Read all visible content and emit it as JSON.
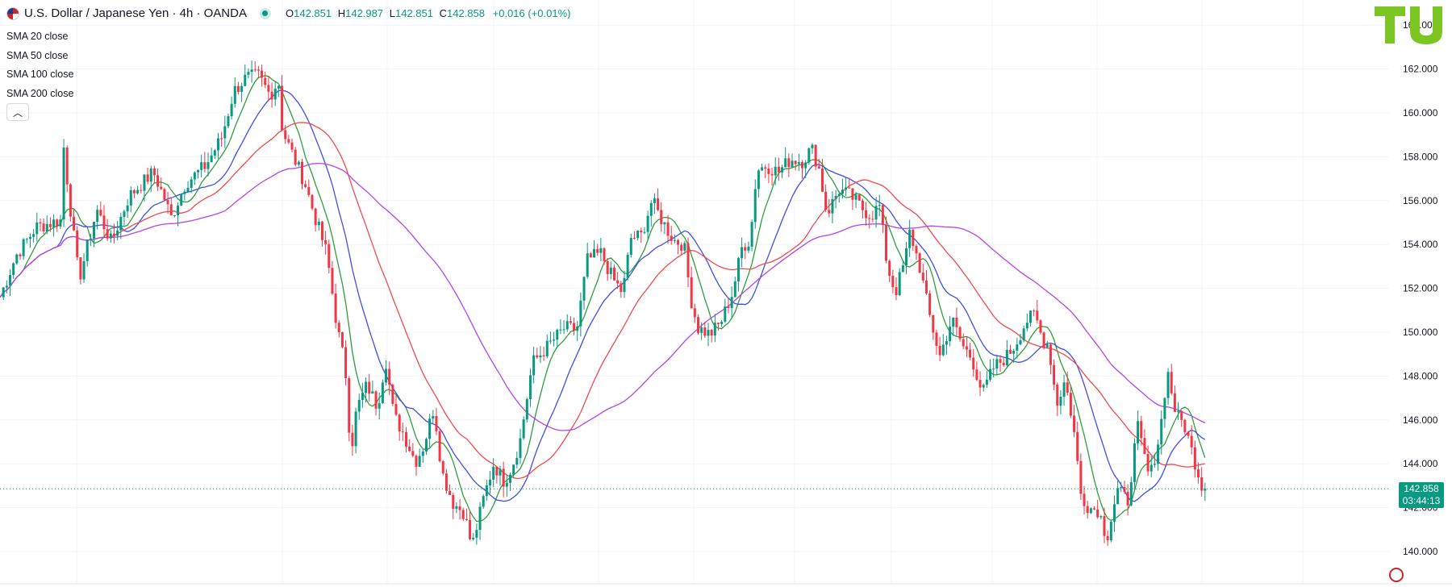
{
  "header": {
    "symbol_title": "U.S. Dollar / Japanese Yen · 4h · OANDA",
    "ohlc": [
      {
        "key": "O",
        "value": "142.851"
      },
      {
        "key": "H",
        "value": "142.987"
      },
      {
        "key": "L",
        "value": "142.851"
      },
      {
        "key": "C",
        "value": "142.858"
      },
      {
        "key": "",
        "value": "+0.016 (+0.01%)"
      }
    ]
  },
  "indicators": [
    {
      "name": "SMA",
      "params": "20 close",
      "color": "#2e9e3a"
    },
    {
      "name": "SMA",
      "params": "50 close",
      "color": "#3f4fe0"
    },
    {
      "name": "SMA",
      "params": "100 close",
      "color": "#ee4b4b"
    },
    {
      "name": "SMA",
      "params": "200 close",
      "color": "#b444e8"
    }
  ],
  "collapse_icon": "chevron-up-icon",
  "last_price": {
    "price": "142.858",
    "countdown": "03:44:13"
  },
  "colors": {
    "up": "#089981",
    "down": "#f23645",
    "accent": "#089981",
    "logo": "#7cc623"
  },
  "chart_data": {
    "type": "candlestick",
    "yticks": [
      "140.000",
      "142.000",
      "144.000",
      "146.000",
      "148.000",
      "150.000",
      "152.000",
      "154.000",
      "156.000",
      "158.000",
      "160.000",
      "162.000",
      "164.000"
    ],
    "ylim": [
      138.9,
      164.5
    ],
    "last_price": 142.858,
    "price_path": [
      [
        0,
        151.6
      ],
      [
        20,
        153.5
      ],
      [
        45,
        154.8
      ],
      [
        75,
        155.1
      ],
      [
        78,
        158.8
      ],
      [
        86,
        156.0
      ],
      [
        98,
        152.4
      ],
      [
        120,
        155.6
      ],
      [
        138,
        154.1
      ],
      [
        160,
        156.2
      ],
      [
        190,
        157.3
      ],
      [
        205,
        156.0
      ],
      [
        212,
        155.2
      ],
      [
        230,
        156.8
      ],
      [
        255,
        157.6
      ],
      [
        275,
        158.9
      ],
      [
        290,
        161.0
      ],
      [
        305,
        161.6
      ],
      [
        320,
        161.7
      ],
      [
        335,
        160.8
      ],
      [
        345,
        161.5
      ],
      [
        350,
        159.2
      ],
      [
        365,
        157.9
      ],
      [
        378,
        156.8
      ],
      [
        390,
        155.3
      ],
      [
        405,
        153.6
      ],
      [
        418,
        150.2
      ],
      [
        428,
        148.4
      ],
      [
        435,
        144.5
      ],
      [
        442,
        146.5
      ],
      [
        455,
        147.6
      ],
      [
        468,
        146.6
      ],
      [
        478,
        148.8
      ],
      [
        488,
        146.2
      ],
      [
        500,
        145.4
      ],
      [
        515,
        144.1
      ],
      [
        525,
        144.8
      ],
      [
        538,
        146.6
      ],
      [
        548,
        143.6
      ],
      [
        562,
        142.2
      ],
      [
        575,
        141.8
      ],
      [
        585,
        140.2
      ],
      [
        600,
        142.5
      ],
      [
        612,
        144.0
      ],
      [
        625,
        143.2
      ],
      [
        635,
        143.9
      ],
      [
        645,
        145.1
      ],
      [
        660,
        148.6
      ],
      [
        680,
        149.4
      ],
      [
        700,
        150.2
      ],
      [
        715,
        150.1
      ],
      [
        728,
        153.3
      ],
      [
        745,
        153.6
      ],
      [
        760,
        152.4
      ],
      [
        772,
        151.8
      ],
      [
        782,
        154.3
      ],
      [
        795,
        154.4
      ],
      [
        808,
        156.0
      ],
      [
        822,
        155.0
      ],
      [
        835,
        154.2
      ],
      [
        848,
        154.0
      ],
      [
        856,
        151.6
      ],
      [
        865,
        150.2
      ],
      [
        880,
        149.9
      ],
      [
        893,
        150.4
      ],
      [
        908,
        151.8
      ],
      [
        920,
        153.9
      ],
      [
        930,
        154.2
      ],
      [
        938,
        157.4
      ],
      [
        950,
        157.6
      ],
      [
        965,
        157.3
      ],
      [
        980,
        157.9
      ],
      [
        995,
        157.8
      ],
      [
        1006,
        158.4
      ],
      [
        1015,
        157.5
      ],
      [
        1025,
        155.4
      ],
      [
        1040,
        156.5
      ],
      [
        1055,
        156.2
      ],
      [
        1070,
        155.6
      ],
      [
        1080,
        155.3
      ],
      [
        1090,
        155.8
      ],
      [
        1100,
        153.0
      ],
      [
        1110,
        151.8
      ],
      [
        1122,
        153.3
      ],
      [
        1128,
        154.6
      ],
      [
        1140,
        153.0
      ],
      [
        1152,
        150.8
      ],
      [
        1165,
        148.9
      ],
      [
        1180,
        150.6
      ],
      [
        1193,
        149.4
      ],
      [
        1205,
        148.8
      ],
      [
        1218,
        147.2
      ],
      [
        1232,
        148.4
      ],
      [
        1248,
        148.9
      ],
      [
        1258,
        149.4
      ],
      [
        1272,
        150.5
      ],
      [
        1283,
        150.8
      ],
      [
        1292,
        149.7
      ],
      [
        1300,
        149.4
      ],
      [
        1310,
        146.7
      ],
      [
        1320,
        147.8
      ],
      [
        1330,
        145.9
      ],
      [
        1340,
        142.6
      ],
      [
        1350,
        142.0
      ],
      [
        1362,
        141.9
      ],
      [
        1372,
        140.6
      ],
      [
        1385,
        142.8
      ],
      [
        1398,
        142.3
      ],
      [
        1410,
        145.7
      ],
      [
        1425,
        143.3
      ],
      [
        1438,
        145.4
      ],
      [
        1447,
        148.3
      ],
      [
        1458,
        146.2
      ],
      [
        1468,
        145.8
      ],
      [
        1478,
        144.5
      ],
      [
        1490,
        143.0
      ],
      [
        1498,
        142.86
      ]
    ]
  }
}
